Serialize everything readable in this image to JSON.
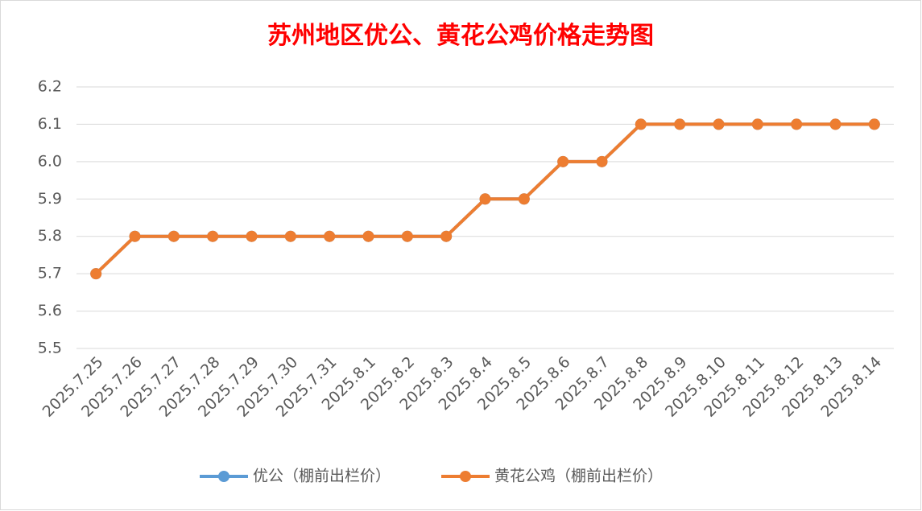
{
  "chart_data": {
    "type": "line",
    "title": "苏州地区优公、黄花公鸡价格走势图",
    "categories": [
      "2025.7.25",
      "2025.7.26",
      "2025.7.27",
      "2025.7.28",
      "2025.7.29",
      "2025.7.30",
      "2025.7.31",
      "2025.8.1",
      "2025.8.2",
      "2025.8.3",
      "2025.8.4",
      "2025.8.5",
      "2025.8.6",
      "2025.8.7",
      "2025.8.8",
      "2025.8.9",
      "2025.8.10",
      "2025.8.11",
      "2025.8.12",
      "2025.8.13",
      "2025.8.14"
    ],
    "series": [
      {
        "name": "优公（棚前出栏价）",
        "color": "#5b9bd5",
        "values": [
          5.7,
          5.8,
          5.8,
          5.8,
          5.8,
          5.8,
          5.8,
          5.8,
          5.8,
          5.8,
          5.9,
          5.9,
          6.0,
          6.0,
          6.1,
          6.1,
          6.1,
          6.1,
          6.1,
          6.1,
          6.1
        ]
      },
      {
        "name": "黄花公鸡（棚前出栏价）",
        "color": "#ed7d31",
        "values": [
          5.7,
          5.8,
          5.8,
          5.8,
          5.8,
          5.8,
          5.8,
          5.8,
          5.8,
          5.8,
          5.9,
          5.9,
          6.0,
          6.0,
          6.1,
          6.1,
          6.1,
          6.1,
          6.1,
          6.1,
          6.1
        ]
      }
    ],
    "ylim": [
      5.5,
      6.2
    ],
    "yticks": [
      5.5,
      5.6,
      5.7,
      5.8,
      5.9,
      {
        "value": 6,
        "label": "6.0"
      },
      6.1,
      6.2
    ],
    "grid": true,
    "legend": "bottom"
  }
}
